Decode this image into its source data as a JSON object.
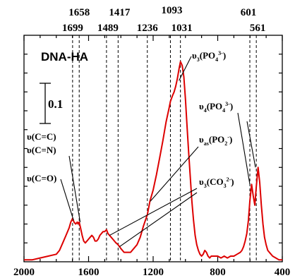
{
  "chart_data": {
    "type": "line",
    "title": "DNA-HA",
    "xlim": [
      2000,
      400
    ],
    "x_axis_reversed": true,
    "x_ticks": [
      "2000",
      "1600",
      "1200",
      "800",
      "400"
    ],
    "x_tick_values": [
      2000,
      1600,
      1200,
      800,
      400
    ],
    "y_ticks_labeled": false,
    "ylim": [
      0,
      1.2
    ],
    "scale_bar_value": 0.1,
    "scale_bar_label": "0.1",
    "grid": false,
    "series_color": "#dd0000",
    "peak_lines": [
      {
        "x": 1699,
        "label": "1699"
      },
      {
        "x": 1658,
        "label": "1658"
      },
      {
        "x": 1489,
        "label": "1489"
      },
      {
        "x": 1417,
        "label": "1417"
      },
      {
        "x": 1236,
        "label": "1236"
      },
      {
        "x": 1093,
        "label": "1093"
      },
      {
        "x": 1031,
        "label": "1031"
      },
      {
        "x": 601,
        "label": "601"
      },
      {
        "x": 561,
        "label": "561"
      }
    ],
    "annotations": [
      {
        "id": "nu3-po4",
        "parts": [
          [
            "n",
            "υ"
          ],
          [
            "sub",
            "3"
          ],
          [
            "n",
            "(PO"
          ],
          [
            "sub",
            "4"
          ],
          [
            "sup",
            "3-"
          ],
          [
            "n",
            ")"
          ]
        ]
      },
      {
        "id": "nu4-po4",
        "parts": [
          [
            "n",
            "υ"
          ],
          [
            "sub",
            "4"
          ],
          [
            "n",
            "(PO"
          ],
          [
            "sub",
            "4"
          ],
          [
            "sup",
            "3-"
          ],
          [
            "n",
            ")"
          ]
        ]
      },
      {
        "id": "nuas-po2",
        "parts": [
          [
            "n",
            "υ"
          ],
          [
            "sub",
            "as"
          ],
          [
            "n",
            "(PO"
          ],
          [
            "sub",
            "2"
          ],
          [
            "sup",
            "-"
          ],
          [
            "n",
            ")"
          ]
        ]
      },
      {
        "id": "nu3-co3",
        "parts": [
          [
            "n",
            "υ"
          ],
          [
            "sub",
            "3"
          ],
          [
            "n",
            "(CO"
          ],
          [
            "sub",
            "3"
          ],
          [
            "sup",
            "2-"
          ],
          [
            "n",
            ")"
          ]
        ]
      },
      {
        "id": "nu-cc",
        "parts": [
          [
            "n",
            "υ(C=C)"
          ]
        ]
      },
      {
        "id": "nu-cn",
        "parts": [
          [
            "n",
            "υ(C=N)"
          ]
        ]
      },
      {
        "id": "nu-co",
        "parts": [
          [
            "n",
            "υ(C=O)"
          ]
        ]
      }
    ],
    "series": [
      {
        "x": [
          2000,
          1950,
          1900,
          1850,
          1800,
          1780,
          1760,
          1740,
          1720,
          1710,
          1699,
          1690,
          1680,
          1670,
          1665,
          1658,
          1650,
          1640,
          1630,
          1620,
          1610,
          1600,
          1590,
          1580,
          1570,
          1560,
          1550,
          1540,
          1530,
          1520,
          1510,
          1500,
          1489,
          1480,
          1470,
          1460,
          1450,
          1440,
          1430,
          1417,
          1400,
          1380,
          1360,
          1340,
          1320,
          1300,
          1280,
          1260,
          1236,
          1220,
          1200,
          1180,
          1160,
          1140,
          1120,
          1100,
          1093,
          1080,
          1070,
          1060,
          1050,
          1040,
          1031,
          1020,
          1010,
          1000,
          990,
          980,
          970,
          960,
          950,
          940,
          930,
          920,
          910,
          900,
          890,
          880,
          870,
          860,
          850,
          840,
          820,
          800,
          780,
          760,
          740,
          720,
          700,
          680,
          660,
          650,
          640,
          630,
          620,
          610,
          601,
          590,
          580,
          570,
          561,
          550,
          540,
          530,
          520,
          510,
          500,
          490,
          480,
          470,
          460,
          440,
          420,
          400
        ],
        "y": [
          0.01,
          0.01,
          0.02,
          0.03,
          0.04,
          0.06,
          0.1,
          0.14,
          0.18,
          0.21,
          0.23,
          0.21,
          0.2,
          0.21,
          0.2,
          0.21,
          0.18,
          0.14,
          0.11,
          0.1,
          0.11,
          0.12,
          0.13,
          0.14,
          0.13,
          0.11,
          0.11,
          0.12,
          0.14,
          0.15,
          0.16,
          0.16,
          0.17,
          0.15,
          0.14,
          0.13,
          0.12,
          0.11,
          0.1,
          0.09,
          0.07,
          0.05,
          0.05,
          0.05,
          0.07,
          0.09,
          0.13,
          0.19,
          0.25,
          0.32,
          0.38,
          0.46,
          0.55,
          0.64,
          0.74,
          0.82,
          0.85,
          0.88,
          0.9,
          0.93,
          0.97,
          1.02,
          1.06,
          1.04,
          0.98,
          0.86,
          0.72,
          0.58,
          0.45,
          0.32,
          0.22,
          0.14,
          0.09,
          0.06,
          0.04,
          0.03,
          0.04,
          0.06,
          0.05,
          0.03,
          0.02,
          0.03,
          0.03,
          0.03,
          0.02,
          0.03,
          0.02,
          0.03,
          0.03,
          0.04,
          0.05,
          0.06,
          0.08,
          0.11,
          0.15,
          0.22,
          0.32,
          0.41,
          0.35,
          0.3,
          0.4,
          0.5,
          0.42,
          0.3,
          0.2,
          0.13,
          0.09,
          0.06,
          0.05,
          0.04,
          0.03,
          0.02,
          0.01,
          0.01
        ]
      }
    ]
  }
}
